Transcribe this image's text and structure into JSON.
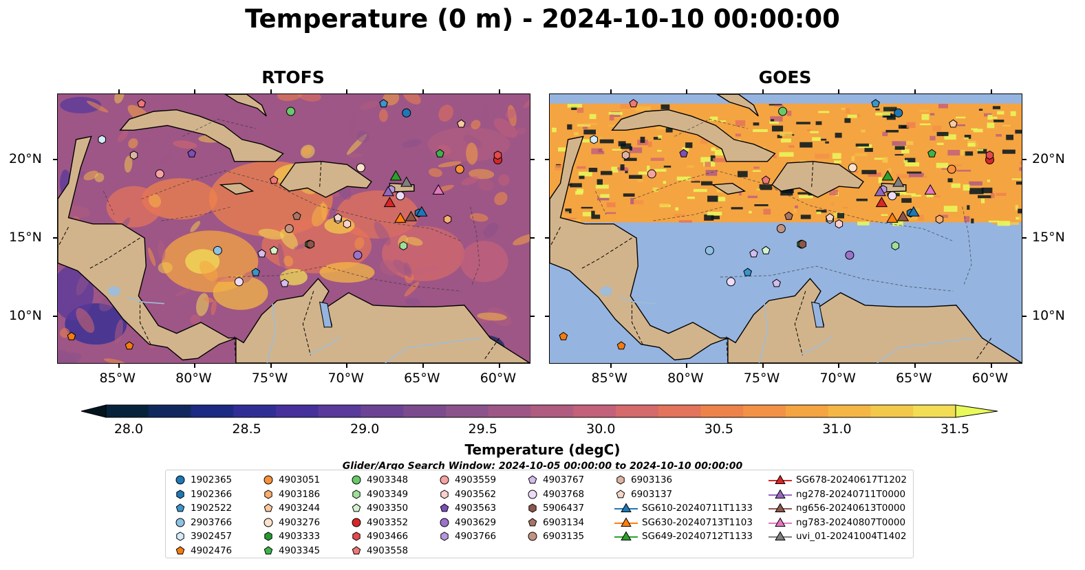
{
  "title": "Temperature (0 m) - 2024-10-10 00:00:00",
  "panels": [
    {
      "title": "RTOFS"
    },
    {
      "title": "GOES"
    }
  ],
  "axes": {
    "lon_labels": [
      "85°W",
      "80°W",
      "75°W",
      "70°W",
      "65°W",
      "60°W"
    ],
    "lon_values": [
      -85,
      -80,
      -75,
      -70,
      -65,
      -60
    ],
    "lat_labels": [
      "10°N",
      "15°N",
      "20°N"
    ],
    "lat_values": [
      10,
      15,
      20
    ],
    "extent": {
      "lon_min": -89,
      "lon_max": -58,
      "lat_min": 7,
      "lat_max": 24.2
    }
  },
  "colorbar": {
    "label": "Temperature (degC)",
    "ticks": [
      "28.0",
      "28.5",
      "29.0",
      "29.5",
      "30.0",
      "30.5",
      "31.0",
      "31.5"
    ],
    "tick_values": [
      28.0,
      28.5,
      29.0,
      29.5,
      30.0,
      30.5,
      31.0,
      31.5
    ],
    "range": [
      28.0,
      31.5
    ],
    "colors": [
      "#06233b",
      "#11285e",
      "#1c2a83",
      "#302e96",
      "#45309c",
      "#5a3a9b",
      "#6c4394",
      "#7b4b8e",
      "#8c528b",
      "#9d5686",
      "#b05c80",
      "#c3617a",
      "#d46a6b",
      "#e3735b",
      "#ee824b",
      "#f39246",
      "#f5a442",
      "#f4b745",
      "#f3c94c",
      "#f2dd55"
    ],
    "over_color": "#e8fa5b",
    "under_color": "#02151f"
  },
  "search_window": "Glider/Argo Search Window: 2024-10-05 00:00:00 to 2024-10-10 00:00:00",
  "map_colors": {
    "land": "#d2b48c",
    "no_data": "#95b4e0",
    "river": "#9fbcd8"
  },
  "legend": [
    {
      "label": "1902365",
      "marker": "circle",
      "color": "#1f77b4"
    },
    {
      "label": "1902366",
      "marker": "hexagon",
      "color": "#1f77b4"
    },
    {
      "label": "1902522",
      "marker": "pentagon",
      "color": "#3a95cc"
    },
    {
      "label": "2903766",
      "marker": "circle",
      "color": "#8ec1e6"
    },
    {
      "label": "3902457",
      "marker": "hexagon",
      "color": "#d4ebf9"
    },
    {
      "label": "4902476",
      "marker": "pentagon",
      "color": "#f47c0e"
    },
    {
      "label": "4903051",
      "marker": "circle",
      "color": "#f7923a"
    },
    {
      "label": "4903186",
      "marker": "hexagon",
      "color": "#f9ad6e"
    },
    {
      "label": "4903244",
      "marker": "pentagon",
      "color": "#fbc99f"
    },
    {
      "label": "4903276",
      "marker": "circle",
      "color": "#fde3cc"
    },
    {
      "label": "4903333",
      "marker": "hexagon",
      "color": "#259a33"
    },
    {
      "label": "4903345",
      "marker": "pentagon",
      "color": "#3cb44b"
    },
    {
      "label": "4903348",
      "marker": "circle",
      "color": "#68c96a"
    },
    {
      "label": "4903349",
      "marker": "hexagon",
      "color": "#9de09a"
    },
    {
      "label": "4903350",
      "marker": "pentagon",
      "color": "#d2f3cc"
    },
    {
      "label": "4903352",
      "marker": "circle",
      "color": "#d62728"
    },
    {
      "label": "4903466",
      "marker": "hexagon",
      "color": "#e24a4b"
    },
    {
      "label": "4903558",
      "marker": "pentagon",
      "color": "#ef7777"
    },
    {
      "label": "4903559",
      "marker": "circle",
      "color": "#f5a3a2"
    },
    {
      "label": "4903562",
      "marker": "hexagon",
      "color": "#fbd0cf"
    },
    {
      "label": "4903563",
      "marker": "pentagon",
      "color": "#7d4fb8"
    },
    {
      "label": "4903629",
      "marker": "circle",
      "color": "#9c72cb"
    },
    {
      "label": "4903766",
      "marker": "hexagon",
      "color": "#b797dc"
    },
    {
      "label": "4903767",
      "marker": "pentagon",
      "color": "#d4bcec"
    },
    {
      "label": "4903768",
      "marker": "circle",
      "color": "#ecdcf7"
    },
    {
      "label": "5906437",
      "marker": "hexagon",
      "color": "#8c564b"
    },
    {
      "label": "6903134",
      "marker": "pentagon",
      "color": "#a97465"
    },
    {
      "label": "6903135",
      "marker": "circle",
      "color": "#c39381"
    },
    {
      "label": "6903136",
      "marker": "hexagon",
      "color": "#ddb4a3"
    },
    {
      "label": "6903137",
      "marker": "pentagon",
      "color": "#f4d7c9"
    },
    {
      "label": "SG610-20240711T1133",
      "marker": "triangle-line",
      "color": "#1f77b4"
    },
    {
      "label": "SG630-20240713T1103",
      "marker": "triangle-line",
      "color": "#ff7f0e"
    },
    {
      "label": "SG649-20240712T1133",
      "marker": "triangle-line",
      "color": "#2ca02c"
    },
    {
      "label": "SG678-20240617T1202",
      "marker": "triangle-line",
      "color": "#d62728"
    },
    {
      "label": "ng278-20240711T0000",
      "marker": "triangle-line",
      "color": "#9467bd"
    },
    {
      "label": "ng656-20240613T0000",
      "marker": "triangle-line",
      "color": "#8c564b"
    },
    {
      "label": "ng783-20240807T0000",
      "marker": "triangle-line",
      "color": "#e377c2"
    },
    {
      "label": "uvi_01-20241004T1402",
      "marker": "triangle-line",
      "color": "#7f7f7f"
    }
  ],
  "floats": [
    {
      "id": "1902365",
      "lon": -66.1,
      "lat": 23.0
    },
    {
      "id": "1902366",
      "lon": -65.3,
      "lat": 16.6
    },
    {
      "id": "1902522",
      "lon": -67.6,
      "lat": 23.6
    },
    {
      "id": "1902522",
      "lon": -76.0,
      "lat": 12.8
    },
    {
      "id": "2903766",
      "lon": -78.5,
      "lat": 14.2
    },
    {
      "id": "3902457",
      "lon": -86.1,
      "lat": 21.3
    },
    {
      "id": "4902476",
      "lon": -88.1,
      "lat": 8.7
    },
    {
      "id": "4902476",
      "lon": -84.3,
      "lat": 8.1
    },
    {
      "id": "4903051",
      "lon": -62.6,
      "lat": 19.4
    },
    {
      "id": "4903186",
      "lon": -63.4,
      "lat": 16.2
    },
    {
      "id": "4903244",
      "lon": -62.5,
      "lat": 22.3
    },
    {
      "id": "4903276",
      "lon": -69.1,
      "lat": 19.5
    },
    {
      "id": "4903333",
      "lon": -72.5,
      "lat": 14.6
    },
    {
      "id": "4903345",
      "lon": -63.9,
      "lat": 20.4
    },
    {
      "id": "4903348",
      "lon": -73.7,
      "lat": 23.1
    },
    {
      "id": "4903349",
      "lon": -66.3,
      "lat": 14.5
    },
    {
      "id": "4903350",
      "lon": -74.8,
      "lat": 14.2
    },
    {
      "id": "4903352",
      "lon": -60.1,
      "lat": 20.0
    },
    {
      "id": "4903466",
      "lon": -60.1,
      "lat": 20.3
    },
    {
      "id": "4903558",
      "lon": -83.5,
      "lat": 23.6
    },
    {
      "id": "4903558",
      "lon": -74.8,
      "lat": 18.7
    },
    {
      "id": "4903559",
      "lon": -82.3,
      "lat": 19.1
    },
    {
      "id": "4903562",
      "lon": -70.6,
      "lat": 16.2
    },
    {
      "id": "4903562",
      "lon": -70.0,
      "lat": 15.9
    },
    {
      "id": "4903563",
      "lon": -80.2,
      "lat": 20.4
    },
    {
      "id": "4903629",
      "lon": -69.3,
      "lat": 13.9
    },
    {
      "id": "4903766",
      "lon": -67.1,
      "lat": 18.1
    },
    {
      "id": "4903767",
      "lon": -75.6,
      "lat": 14.0
    },
    {
      "id": "4903767",
      "lon": -74.1,
      "lat": 12.1
    },
    {
      "id": "4903768",
      "lon": -77.1,
      "lat": 12.2
    },
    {
      "id": "4903768",
      "lon": -66.5,
      "lat": 17.7
    },
    {
      "id": "5906437",
      "lon": -72.4,
      "lat": 14.6
    },
    {
      "id": "6903134",
      "lon": -73.3,
      "lat": 16.4
    },
    {
      "id": "6903135",
      "lon": -73.8,
      "lat": 15.6
    },
    {
      "id": "6903136",
      "lon": -84.0,
      "lat": 20.3
    },
    {
      "id": "6903137",
      "lon": -70.6,
      "lat": 16.3
    }
  ],
  "gliders": [
    {
      "id": "SG610-20240711T1133",
      "lon": -65.1,
      "lat": 16.6
    },
    {
      "id": "SG630-20240713T1103",
      "lon": -66.5,
      "lat": 16.2
    },
    {
      "id": "SG649-20240712T1133",
      "lon": -66.8,
      "lat": 18.9
    },
    {
      "id": "SG678-20240617T1202",
      "lon": -67.2,
      "lat": 17.2
    },
    {
      "id": "ng278-20240711T0000",
      "lon": -67.3,
      "lat": 17.9
    },
    {
      "id": "ng656-20240613T0000",
      "lon": -65.8,
      "lat": 16.3
    },
    {
      "id": "ng783-20240807T0000",
      "lon": -64.0,
      "lat": 18.0
    },
    {
      "id": "uvi_01-20241004T1402",
      "lon": -66.1,
      "lat": 18.5
    }
  ]
}
